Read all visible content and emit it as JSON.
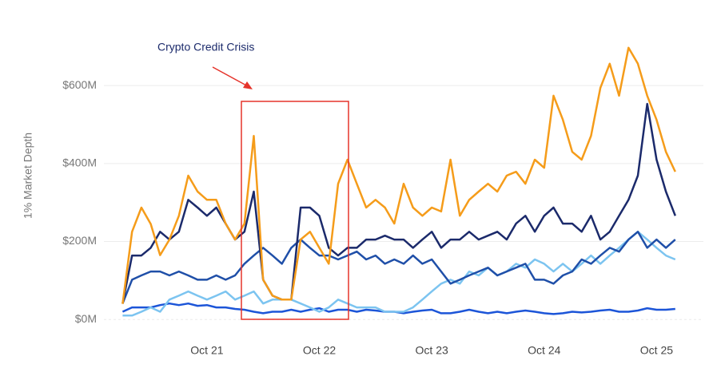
{
  "chart_data": {
    "type": "line",
    "y_label": "1% Market Depth",
    "annotation": "Crypto Credit Crisis",
    "x": [
      "2021-01",
      "2021-02",
      "2021-03",
      "2021-04",
      "2021-05",
      "2021-06",
      "2021-07",
      "2021-08",
      "2021-09",
      "2021-10",
      "2021-11",
      "2021-12",
      "2022-01",
      "2022-02",
      "2022-03",
      "2022-04",
      "2022-05",
      "2022-06",
      "2022-07",
      "2022-08",
      "2022-09",
      "2022-10",
      "2022-11",
      "2022-12",
      "2023-01",
      "2023-02",
      "2023-03",
      "2023-04",
      "2023-05",
      "2023-06",
      "2023-07",
      "2023-08",
      "2023-09",
      "2023-10",
      "2023-11",
      "2023-12",
      "2024-01",
      "2024-02",
      "2024-03",
      "2024-04",
      "2024-05",
      "2024-06",
      "2024-07",
      "2024-08",
      "2024-09",
      "2024-10",
      "2024-11",
      "2024-12",
      "2025-01",
      "2025-02",
      "2025-03",
      "2025-04",
      "2025-05",
      "2025-06",
      "2025-07",
      "2025-08",
      "2025-09",
      "2025-10",
      "2025-11",
      "2025-12"
    ],
    "xlim": [
      "2020-11",
      "2026-03"
    ],
    "xticks": [
      {
        "value": "2021-10",
        "label": "Oct 21"
      },
      {
        "value": "2022-10",
        "label": "Oct 22"
      },
      {
        "value": "2023-10",
        "label": "Oct 23"
      },
      {
        "value": "2024-10",
        "label": "Oct 24"
      },
      {
        "value": "2025-10",
        "label": "Oct 25"
      }
    ],
    "ylim": [
      -20,
      760
    ],
    "yticks": [
      {
        "value": 0,
        "label": "$0M"
      },
      {
        "value": 200,
        "label": "$200M"
      },
      {
        "value": 400,
        "label": "$400M"
      },
      {
        "value": 600,
        "label": "$600M"
      }
    ],
    "grid": true,
    "series": [
      {
        "color": "#1c55d8",
        "values": [
          20,
          31,
          31,
          31,
          37,
          41,
          37,
          41,
          35,
          37,
          31,
          31,
          27,
          25,
          20,
          16,
          20,
          20,
          25,
          20,
          25,
          29,
          20,
          25,
          25,
          20,
          25,
          23,
          20,
          20,
          16,
          20,
          23,
          25,
          16,
          16,
          20,
          25,
          20,
          16,
          20,
          16,
          20,
          23,
          20,
          16,
          14,
          16,
          20,
          18,
          20,
          23,
          25,
          20,
          20,
          23,
          29,
          25,
          25,
          27
        ]
      },
      {
        "color": "#7cc4f0",
        "values": [
          10,
          10,
          20,
          31,
          20,
          51,
          61,
          72,
          61,
          51,
          61,
          72,
          51,
          61,
          72,
          41,
          51,
          51,
          51,
          41,
          31,
          20,
          31,
          51,
          41,
          31,
          31,
          31,
          20,
          20,
          20,
          31,
          51,
          72,
          92,
          102,
          92,
          123,
          113,
          133,
          113,
          123,
          143,
          133,
          154,
          143,
          123,
          143,
          123,
          143,
          164,
          143,
          164,
          184,
          205,
          225,
          205,
          184,
          164,
          154
        ]
      },
      {
        "color": "#1f4fa8",
        "values": [
          41,
          102,
          113,
          123,
          123,
          113,
          123,
          113,
          102,
          102,
          113,
          102,
          113,
          143,
          164,
          184,
          164,
          143,
          184,
          205,
          184,
          164,
          164,
          154,
          164,
          174,
          154,
          164,
          143,
          154,
          143,
          164,
          143,
          154,
          123,
          92,
          102,
          113,
          123,
          133,
          113,
          123,
          133,
          143,
          102,
          102,
          92,
          113,
          123,
          154,
          143,
          164,
          184,
          174,
          205,
          225,
          184,
          205,
          184,
          205
        ]
      },
      {
        "color": "#1b2a6b",
        "values": [
          41,
          164,
          164,
          184,
          225,
          205,
          225,
          307,
          287,
          266,
          287,
          246,
          205,
          225,
          328,
          102,
          61,
          51,
          51,
          287,
          287,
          266,
          184,
          164,
          184,
          184,
          205,
          205,
          215,
          205,
          205,
          184,
          205,
          225,
          184,
          205,
          205,
          225,
          205,
          215,
          225,
          205,
          246,
          266,
          225,
          266,
          287,
          246,
          246,
          225,
          266,
          205,
          225,
          266,
          307,
          369,
          553,
          410,
          328,
          266
        ]
      },
      {
        "color": "#f59c1a",
        "values": [
          40,
          225,
          287,
          245,
          165,
          205,
          266,
          369,
          328,
          307,
          307,
          246,
          205,
          246,
          471,
          102,
          61,
          51,
          51,
          205,
          225,
          184,
          143,
          348,
          410,
          348,
          287,
          307,
          287,
          246,
          348,
          287,
          266,
          287,
          277,
          410,
          266,
          307,
          328,
          348,
          328,
          369,
          379,
          348,
          410,
          389,
          574,
          512,
          430,
          410,
          471,
          594,
          656,
          574,
          697,
          656,
          574,
          512,
          430,
          379
        ]
      }
    ]
  }
}
